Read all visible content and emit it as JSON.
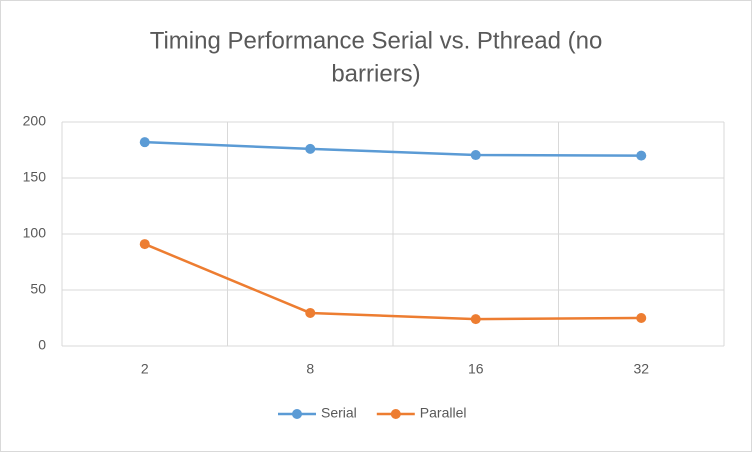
{
  "chart_data": {
    "type": "line",
    "title_lines": [
      "Timing Performance Serial vs. Pthread (no",
      "barriers)"
    ],
    "categories": [
      "2",
      "8",
      "16",
      "32"
    ],
    "series": [
      {
        "name": "Serial",
        "color": "#5b9bd5",
        "values": [
          182,
          176,
          170.5,
          170
        ]
      },
      {
        "name": "Parallel",
        "color": "#ed7d31",
        "values": [
          91,
          29.5,
          24,
          25
        ]
      }
    ],
    "ylim": [
      0,
      200
    ],
    "yticks": [
      0,
      50,
      100,
      150,
      200
    ],
    "grid": true,
    "legend": "bottom"
  }
}
